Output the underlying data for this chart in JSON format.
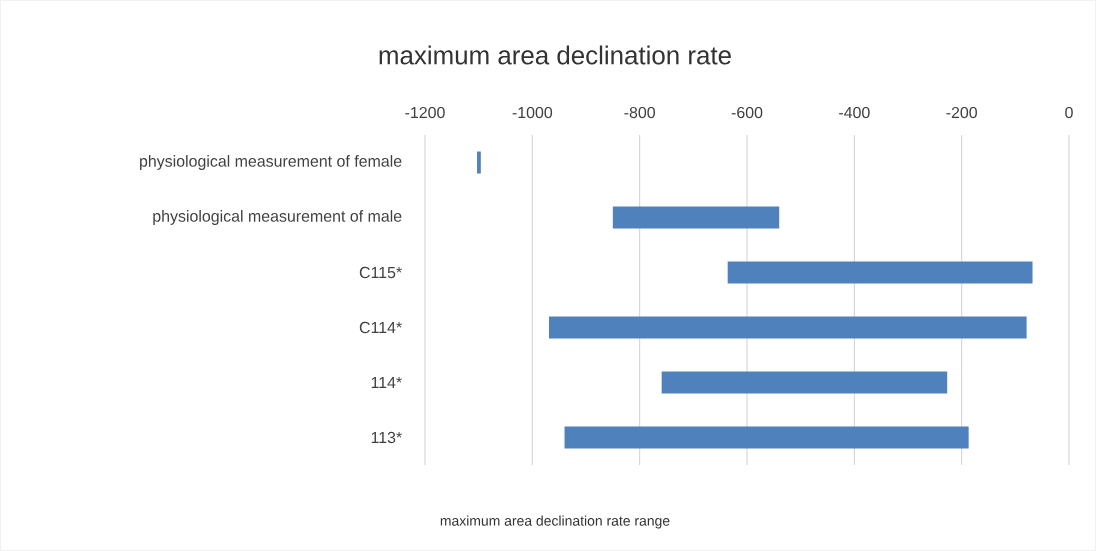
{
  "chart_data": {
    "type": "bar",
    "orientation": "horizontal",
    "title": "maximum area declination rate",
    "xlabel": "maximum area declination rate range",
    "categories": [
      "physiological measurement of female",
      "physiological measurement of male",
      "C115*",
      "C114*",
      "114*",
      "113*"
    ],
    "base": [
      -1103,
      -850,
      -636,
      -969,
      -759,
      -940
    ],
    "values": [
      7,
      310,
      568,
      890,
      532,
      753
    ],
    "color": "#4f81bd",
    "xlim": [
      -1200,
      0
    ],
    "xticks": [
      -1200,
      -1000,
      -800,
      -600,
      -400,
      -200,
      0
    ],
    "grid": "x"
  }
}
